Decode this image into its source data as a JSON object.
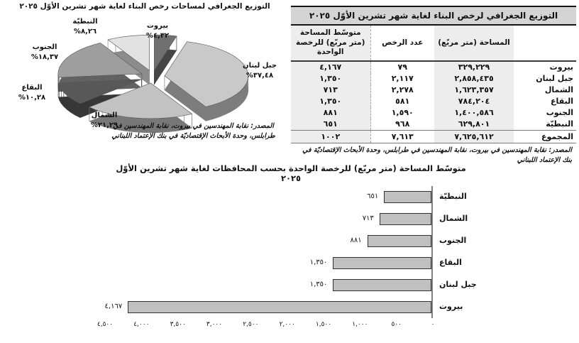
{
  "pie_section": {
    "source_note": "المصدر: نقابة المهندسين في بيروت، نقابة المهندسين في طرابلس، وحدة الأبحاث الإقتصاديّة في بنك الإعتماد اللبناني"
  },
  "table_section": {
    "title": "التوزيع الجغرافي لرخص البناء لغاية شهر تشرين الأوّل ٢٠٢٥",
    "columns": [
      "",
      "المساحة (متر مربّع)",
      "عدد الرخص",
      "متوسّط المساحة (متر مربّع) للرخصة الواحدة"
    ],
    "rows": [
      {
        "name": "بيروت",
        "area": "٣٢٩,٢٢٩",
        "permits": "٧٩",
        "avg": "٤,١٦٧"
      },
      {
        "name": "جبل لبنان",
        "area": "٢,٨٥٨,٤٣٥",
        "permits": "٢,١١٧",
        "avg": "١,٣٥٠"
      },
      {
        "name": "الشمال",
        "area": "١,٦٢٣,٣٥٧",
        "permits": "٢,٢٧٨",
        "avg": "٧١٣"
      },
      {
        "name": "البقاع",
        "area": "٧٨٤,٢٠٤",
        "permits": "٥٨١",
        "avg": "١,٣٥٠"
      },
      {
        "name": "الجنوب",
        "area": "١,٤٠٠,٥٨٦",
        "permits": "١,٥٩٠",
        "avg": "٨٨١"
      },
      {
        "name": "النبطيّة",
        "area": "٦٢٩,٨٠١",
        "permits": "٩٦٨",
        "avg": "٦٥١"
      }
    ],
    "total": {
      "name": "المجموع",
      "area": "٧,٦٢٥,٦١٢",
      "permits": "٧,٦١٣",
      "avg": "١٠٠٢"
    },
    "source_note": "المصدر: نقابة المهندسين في بيروت، نقابة المهندسين في طرابلس، وحدة الأبحاث الإقتصاديّة في بنك الإعتماد اللبناني"
  },
  "chart_data": [
    {
      "type": "pie",
      "style": "3d-exploded",
      "title": "التوزيع الجغرافي لمساحات رخص البناء لغاية شهر تشرين الأوّل ٢٠٢٥",
      "labels": [
        "بيروت",
        "جبل لبنان",
        "الشمال",
        "البقاع",
        "الجنوب",
        "النبطيّة"
      ],
      "values_pct": [
        4.32,
        37.48,
        21.29,
        10.28,
        18.37,
        8.26
      ],
      "value_labels": [
        "٤,٣٢%",
        "٣٧,٤٨%",
        "٢١,٢٩%",
        "١٠,٢٨%",
        "١٨,٣٧%",
        "٨,٢٦%"
      ],
      "colors": [
        "#707070",
        "#c9c9c9",
        "#c2c2c2",
        "#585858",
        "#9e9e9e",
        "#e2e2e2"
      ],
      "legend": "none"
    },
    {
      "type": "bar",
      "orientation": "horizontal-rtl",
      "title_lines": [
        "متوسّط المساحة (متر مربّع) للرخصة الواحدة بحسب المحافظات لغاية شهر تشرين الأوّل",
        "٢٠٢٥"
      ],
      "categories": [
        "النبطيّة",
        "الشمال",
        "الجنوب",
        "البقاع",
        "جبل لبنان",
        "بيروت"
      ],
      "values": [
        651,
        713,
        881,
        1350,
        1350,
        4167
      ],
      "value_labels": [
        "٦٥١",
        "٧١٣",
        "٨٨١",
        "١,٣٥٠",
        "١,٣٥٠",
        "٤,١٦٧"
      ],
      "xlim": [
        0,
        4500
      ],
      "x_tick_step": 500,
      "x_ticks": [
        "٠",
        "٥٠٠",
        "١,٠٠٠",
        "١,٥٠٠",
        "٢,٠٠٠",
        "٢,٥٠٠",
        "٣,٠٠٠",
        "٣,٥٠٠",
        "٤,٠٠٠",
        "٤,٥٠٠"
      ],
      "bar_color": "#c0c0c0",
      "grid": false
    }
  ]
}
